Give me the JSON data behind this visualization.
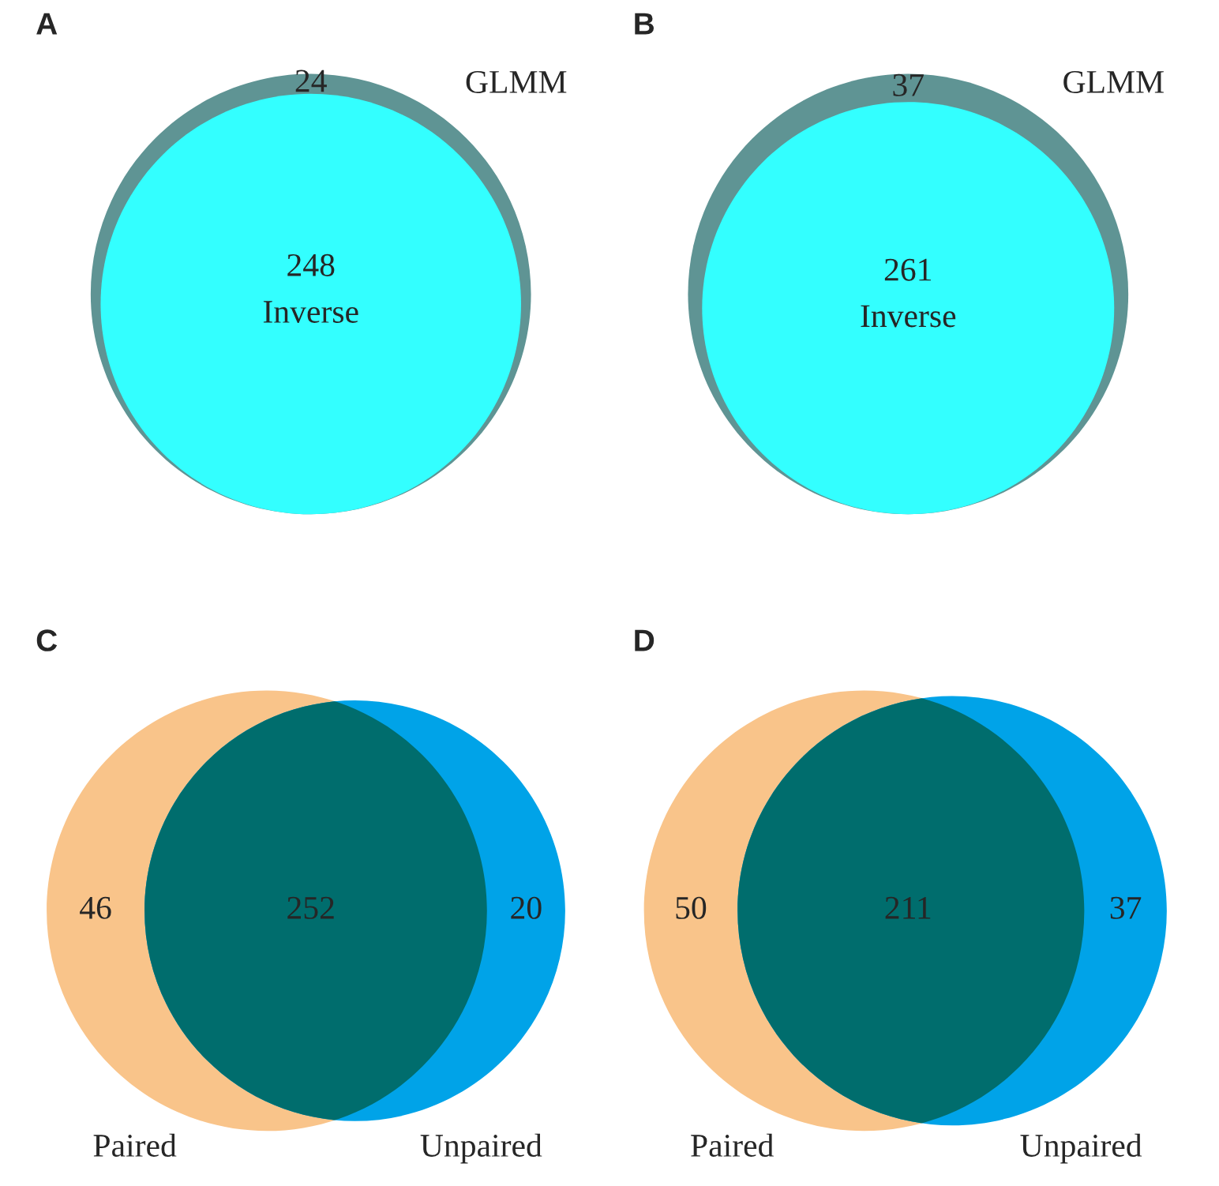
{
  "chart_data": [
    {
      "type": "other",
      "title": "A",
      "categories": [
        null,
        null
      ],
      "values": [
        24,
        248
      ],
      "colors": [
        "#5f9494",
        "#33ffff"
      ],
      "data_labels": true,
      "annotations": [
        "GLMM",
        "Inverse"
      ]
    },
    {
      "type": "other",
      "title": "B",
      "categories": [
        null,
        null
      ],
      "values": [
        37,
        261
      ],
      "colors": [
        "#5f9494",
        "#33ffff"
      ],
      "data_labels": true,
      "annotations": [
        "GLMM",
        "Inverse"
      ]
    },
    {
      "type": "other",
      "title": "C",
      "categories": [
        null,
        null,
        null
      ],
      "values": [
        46,
        252,
        20
      ],
      "colors": [
        "#f9c48a",
        "#006d6d",
        "#00a3e8"
      ],
      "data_labels": true,
      "annotations": [
        "Paired",
        "Unpaired"
      ]
    },
    {
      "type": "other",
      "title": "D",
      "categories": [
        null,
        null,
        null
      ],
      "values": [
        50,
        211,
        37
      ],
      "colors": [
        "#f9c48a",
        "#006d6d",
        "#00a3e8"
      ],
      "data_labels": true,
      "annotations": [
        "Paired",
        "Unpaired"
      ]
    }
  ]
}
